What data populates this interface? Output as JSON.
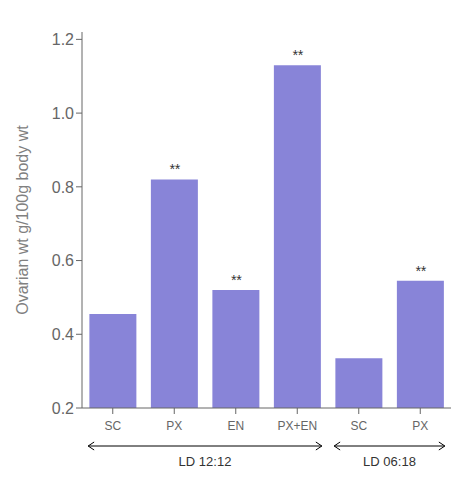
{
  "chart_data": {
    "type": "bar",
    "categories": [
      "SC",
      "PX",
      "EN",
      "PX+EN",
      "SC",
      "PX"
    ],
    "values": [
      0.455,
      0.82,
      0.52,
      1.13,
      0.335,
      0.545
    ],
    "bar_annotations": [
      null,
      "**",
      "**",
      "**",
      null,
      "**"
    ],
    "groups": [
      {
        "label": "LD 12:12",
        "size": 4
      },
      {
        "label": "LD 06:18",
        "size": 2
      }
    ],
    "ylabel": "Ovarian wt g/100g body wt",
    "ylim": [
      0.2,
      1.22
    ],
    "yticks": [
      0.2,
      0.4,
      0.6,
      0.8,
      {
        "value": 1.0,
        "label": "1.0"
      },
      1.2
    ],
    "grid": false
  }
}
